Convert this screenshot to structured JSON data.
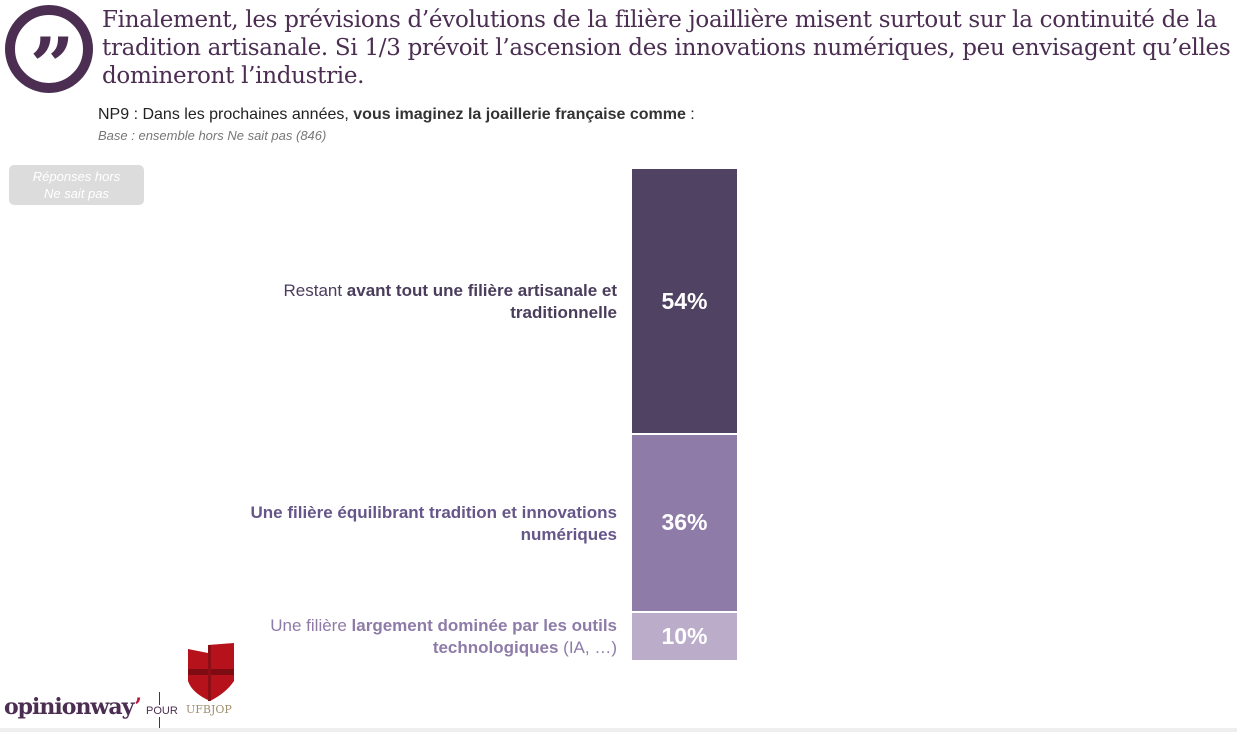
{
  "headline": "Finalement, les prévisions d’évolutions de la filière joaillière misent surtout sur la continuité de la tradition artisanale. Si 1/3 prévoit l’ascension des innovations numériques, peu envisagent qu’elles domineront l’industrie.",
  "question": {
    "prefix": "NP9 : Dans les prochaines années, ",
    "bold": "vous imaginez la joaillerie française comme",
    "suffix": " :"
  },
  "base": "Base : ensemble hors Ne sait pas (846)",
  "badge": {
    "line1": "Réponses hors",
    "line2": "Ne sait pas"
  },
  "quote_icon": "”",
  "footer": {
    "brand": "opinionway",
    "pour": "POUR",
    "partner": "UFBJOP"
  },
  "chart_data": {
    "type": "bar",
    "stacked": true,
    "categories": [
      "Restant avant tout une filière artisanale et traditionnelle",
      "Une filière équilibrant tradition et innovations numériques",
      "Une filière largement dominée par les outils technologiques (IA, …)"
    ],
    "values": [
      54,
      36,
      10
    ],
    "data_labels": [
      "54%",
      "36%",
      "10%"
    ],
    "colors": [
      "#504262",
      "#8e7ba8",
      "#bbadca"
    ],
    "label_parts": [
      [
        {
          "t": "Restant ",
          "b": false
        },
        {
          "t": "avant tout une filière artisanale et traditionnelle",
          "b": true
        }
      ],
      [
        {
          "t": "Une filière équilibrant tradition et innovations numériques",
          "b": true
        }
      ],
      [
        {
          "t": "Une filière ",
          "b": false
        },
        {
          "t": "largement dominée par les outils technologiques",
          "b": true
        },
        {
          "t": " (IA, …)",
          "b": false
        }
      ]
    ],
    "label_colors": [
      "#4a3d5c",
      "#66568a",
      "#8e7ba8"
    ],
    "ylim": [
      0,
      100
    ]
  }
}
